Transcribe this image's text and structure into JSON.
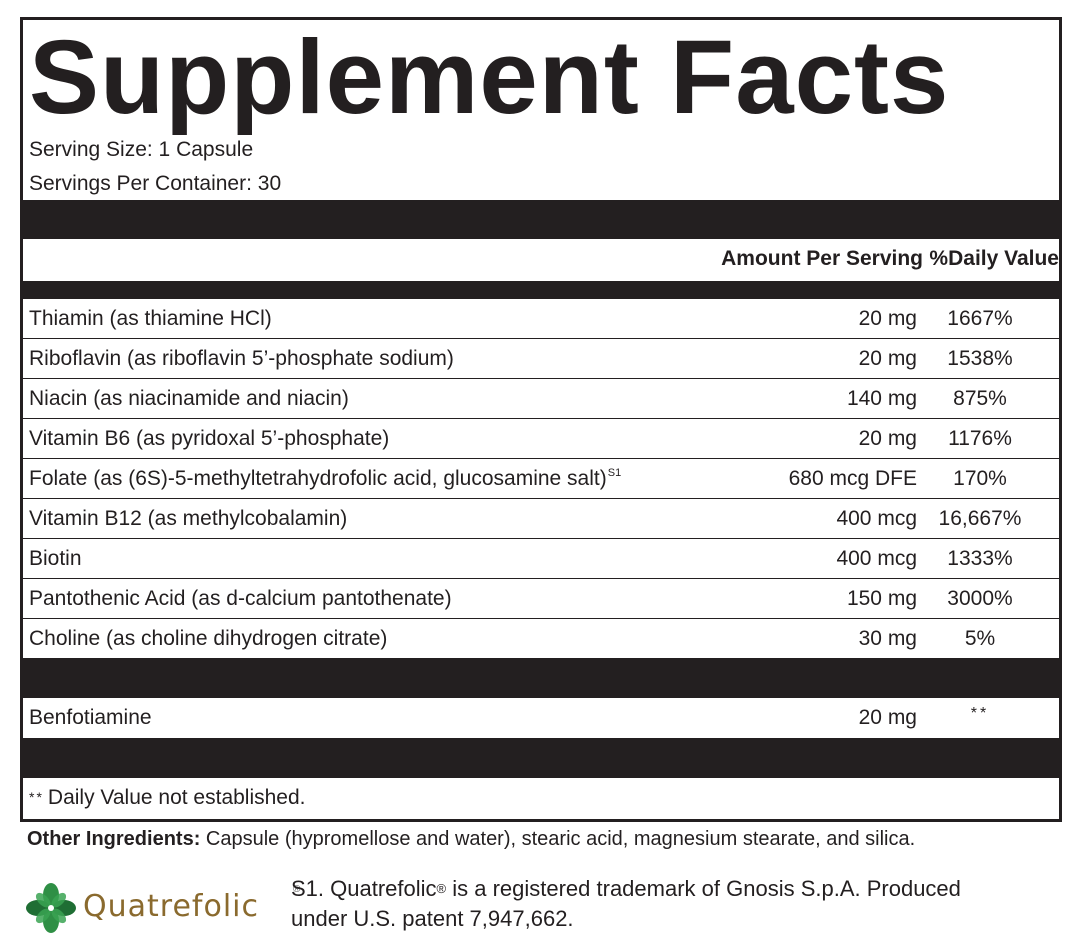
{
  "title": "Supplement Facts",
  "serving_size": "Serving Size: 1 Capsule",
  "servings_per_container": "Servings Per Container: 30",
  "headers": {
    "amount": "Amount Per Serving",
    "daily_value": "%Daily Value"
  },
  "rows": [
    {
      "name": "Thiamin (as thiamine HCl)",
      "amount": "20 mg",
      "dv": "1667%"
    },
    {
      "name": "Riboflavin (as riboflavin 5’-phosphate sodium)",
      "amount": "20 mg",
      "dv": "1538%"
    },
    {
      "name": "Niacin (as niacinamide and niacin)",
      "amount": "140 mg",
      "dv": "875%"
    },
    {
      "name": "Vitamin B6 (as pyridoxal 5’-phosphate)",
      "amount": "20 mg",
      "dv": "1176%"
    },
    {
      "name": "Folate (as (6S)-5-methyltetrahydrofolic acid, glucosamine salt)",
      "sup": "S1",
      "amount": "680 mcg DFE",
      "dv": "170%"
    },
    {
      "name": "Vitamin B12 (as methylcobalamin)",
      "amount": "400 mcg",
      "dv": "16,667%"
    },
    {
      "name": "Biotin",
      "amount": "400 mcg",
      "dv": "1333%"
    },
    {
      "name": "Pantothenic Acid (as d-calcium pantothenate)",
      "amount": "150 mg",
      "dv": "3000%"
    },
    {
      "name": "Choline (as choline dihydrogen citrate)",
      "amount": "30 mg",
      "dv": "5%"
    }
  ],
  "other_row": {
    "name": "Benfotiamine",
    "amount": "20 mg",
    "dv": "**"
  },
  "footnote": {
    "stars": "**",
    "text": "Daily Value not established."
  },
  "other_ingredients": {
    "label": "Other Ingredients:",
    "text": " Capsule (hypromellose and water), stearic acid, magnesium stearate, and silica."
  },
  "logo": {
    "text": "Quatrefolic",
    "registered": "®",
    "colors": {
      "leaf_green": "#2f8f45",
      "leaf_dark": "#1f6e34",
      "text": "#8a6a2e"
    }
  },
  "trademark_note": {
    "line1a": "S1. Quatrefolic",
    "reg": "®",
    "line1b": " is a registered trademark of Gnosis S.p.A. Produced",
    "line2": "under U.S. patent 7,947,662."
  },
  "colors": {
    "ink": "#231f20",
    "background": "#ffffff"
  }
}
